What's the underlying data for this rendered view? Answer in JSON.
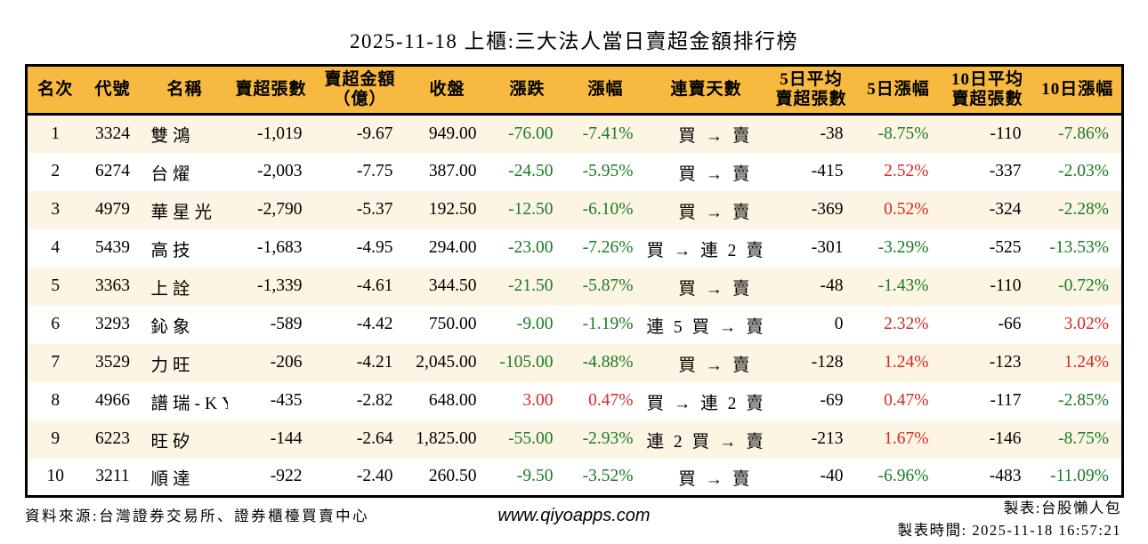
{
  "title": "2025-11-18 上櫃:三大法人當日賣超金額排行榜",
  "colors": {
    "header_bg": "#f7b93f",
    "row_stripe": "#fdf5e3",
    "border": "#000000",
    "down_green": "#1a7a23",
    "up_red": "#d42828"
  },
  "header": {
    "cells": [
      {
        "lines": [
          "名次"
        ]
      },
      {
        "lines": [
          "代號"
        ]
      },
      {
        "lines": [
          "名稱"
        ]
      },
      {
        "lines": [
          "賣超張數"
        ]
      },
      {
        "lines": [
          "賣超金額",
          "（億）"
        ]
      },
      {
        "lines": [
          "收盤"
        ]
      },
      {
        "lines": [
          "漲跌"
        ]
      },
      {
        "lines": [
          "漲幅"
        ]
      },
      {
        "lines": [
          "連賣天數"
        ]
      },
      {
        "lines": [
          "5日平均",
          "賣超張數"
        ]
      },
      {
        "lines": [
          "5日漲幅"
        ]
      },
      {
        "lines": [
          "10日平均",
          "賣超張數"
        ]
      },
      {
        "lines": [
          "10日漲幅"
        ]
      }
    ]
  },
  "chart_data": {
    "type": "table",
    "title": "2025-11-18 上櫃:三大法人當日賣超金額排行榜",
    "columns": [
      "名次",
      "代號",
      "名稱",
      "賣超張數",
      "賣超金額（億）",
      "收盤",
      "漲跌",
      "漲幅",
      "連賣天數",
      "5日平均賣超張數",
      "5日漲幅",
      "10日平均賣超張數",
      "10日漲幅"
    ],
    "rows": [
      {
        "rank": "1",
        "code": "3324",
        "name": "雙鴻",
        "sell_volume": "-1,019",
        "sell_amount": "-9.67",
        "close": "949.00",
        "change": "-76.00",
        "change_color": "green",
        "change_pct": "-7.41%",
        "streak": "買 → 賣",
        "avg5": "-38",
        "pct5": "-8.75%",
        "pct5_color": "green",
        "avg10": "-110",
        "pct10": "-7.86%",
        "pct10_color": "green"
      },
      {
        "rank": "2",
        "code": "6274",
        "name": "台燿",
        "sell_volume": "-2,003",
        "sell_amount": "-7.75",
        "close": "387.00",
        "change": "-24.50",
        "change_color": "green",
        "change_pct": "-5.95%",
        "streak": "買 → 賣",
        "avg5": "-415",
        "pct5": "2.52%",
        "pct5_color": "red",
        "avg10": "-337",
        "pct10": "-2.03%",
        "pct10_color": "green"
      },
      {
        "rank": "3",
        "code": "4979",
        "name": "華星光",
        "sell_volume": "-2,790",
        "sell_amount": "-5.37",
        "close": "192.50",
        "change": "-12.50",
        "change_color": "green",
        "change_pct": "-6.10%",
        "streak": "買 → 賣",
        "avg5": "-369",
        "pct5": "0.52%",
        "pct5_color": "red",
        "avg10": "-324",
        "pct10": "-2.28%",
        "pct10_color": "green"
      },
      {
        "rank": "4",
        "code": "5439",
        "name": "高技",
        "sell_volume": "-1,683",
        "sell_amount": "-4.95",
        "close": "294.00",
        "change": "-23.00",
        "change_color": "green",
        "change_pct": "-7.26%",
        "streak": "買 → 連 2 賣",
        "avg5": "-301",
        "pct5": "-3.29%",
        "pct5_color": "green",
        "avg10": "-525",
        "pct10": "-13.53%",
        "pct10_color": "green"
      },
      {
        "rank": "5",
        "code": "3363",
        "name": "上詮",
        "sell_volume": "-1,339",
        "sell_amount": "-4.61",
        "close": "344.50",
        "change": "-21.50",
        "change_color": "green",
        "change_pct": "-5.87%",
        "streak": "買 → 賣",
        "avg5": "-48",
        "pct5": "-1.43%",
        "pct5_color": "green",
        "avg10": "-110",
        "pct10": "-0.72%",
        "pct10_color": "green"
      },
      {
        "rank": "6",
        "code": "3293",
        "name": "鈊象",
        "sell_volume": "-589",
        "sell_amount": "-4.42",
        "close": "750.00",
        "change": "-9.00",
        "change_color": "green",
        "change_pct": "-1.19%",
        "streak": "連 5 買 → 賣",
        "avg5": "0",
        "pct5": "2.32%",
        "pct5_color": "red",
        "avg10": "-66",
        "pct10": "3.02%",
        "pct10_color": "red"
      },
      {
        "rank": "7",
        "code": "3529",
        "name": "力旺",
        "sell_volume": "-206",
        "sell_amount": "-4.21",
        "close": "2,045.00",
        "change": "-105.00",
        "change_color": "green",
        "change_pct": "-4.88%",
        "streak": "買 → 賣",
        "avg5": "-128",
        "pct5": "1.24%",
        "pct5_color": "red",
        "avg10": "-123",
        "pct10": "1.24%",
        "pct10_color": "red"
      },
      {
        "rank": "8",
        "code": "4966",
        "name": "譜瑞-KY",
        "sell_volume": "-435",
        "sell_amount": "-2.82",
        "close": "648.00",
        "change": "3.00",
        "change_color": "red",
        "change_pct": "0.47%",
        "streak": "買 → 連 2 賣",
        "avg5": "-69",
        "pct5": "0.47%",
        "pct5_color": "red",
        "avg10": "-117",
        "pct10": "-2.85%",
        "pct10_color": "green"
      },
      {
        "rank": "9",
        "code": "6223",
        "name": "旺矽",
        "sell_volume": "-144",
        "sell_amount": "-2.64",
        "close": "1,825.00",
        "change": "-55.00",
        "change_color": "green",
        "change_pct": "-2.93%",
        "streak": "連 2 買 → 賣",
        "avg5": "-213",
        "pct5": "1.67%",
        "pct5_color": "red",
        "avg10": "-146",
        "pct10": "-8.75%",
        "pct10_color": "green"
      },
      {
        "rank": "10",
        "code": "3211",
        "name": "順達",
        "sell_volume": "-922",
        "sell_amount": "-2.40",
        "close": "260.50",
        "change": "-9.50",
        "change_color": "green",
        "change_pct": "-3.52%",
        "streak": "買 → 賣",
        "avg5": "-40",
        "pct5": "-6.96%",
        "pct5_color": "green",
        "avg10": "-483",
        "pct10": "-11.09%",
        "pct10_color": "green"
      }
    ]
  },
  "footer": {
    "source": "資料來源:台灣證券交易所、證券櫃檯買賣中心",
    "website": "www.qiyoapps.com",
    "maker": "製表:台股懶人包",
    "time": "製表時間: 2025-11-18 16:57:21"
  }
}
